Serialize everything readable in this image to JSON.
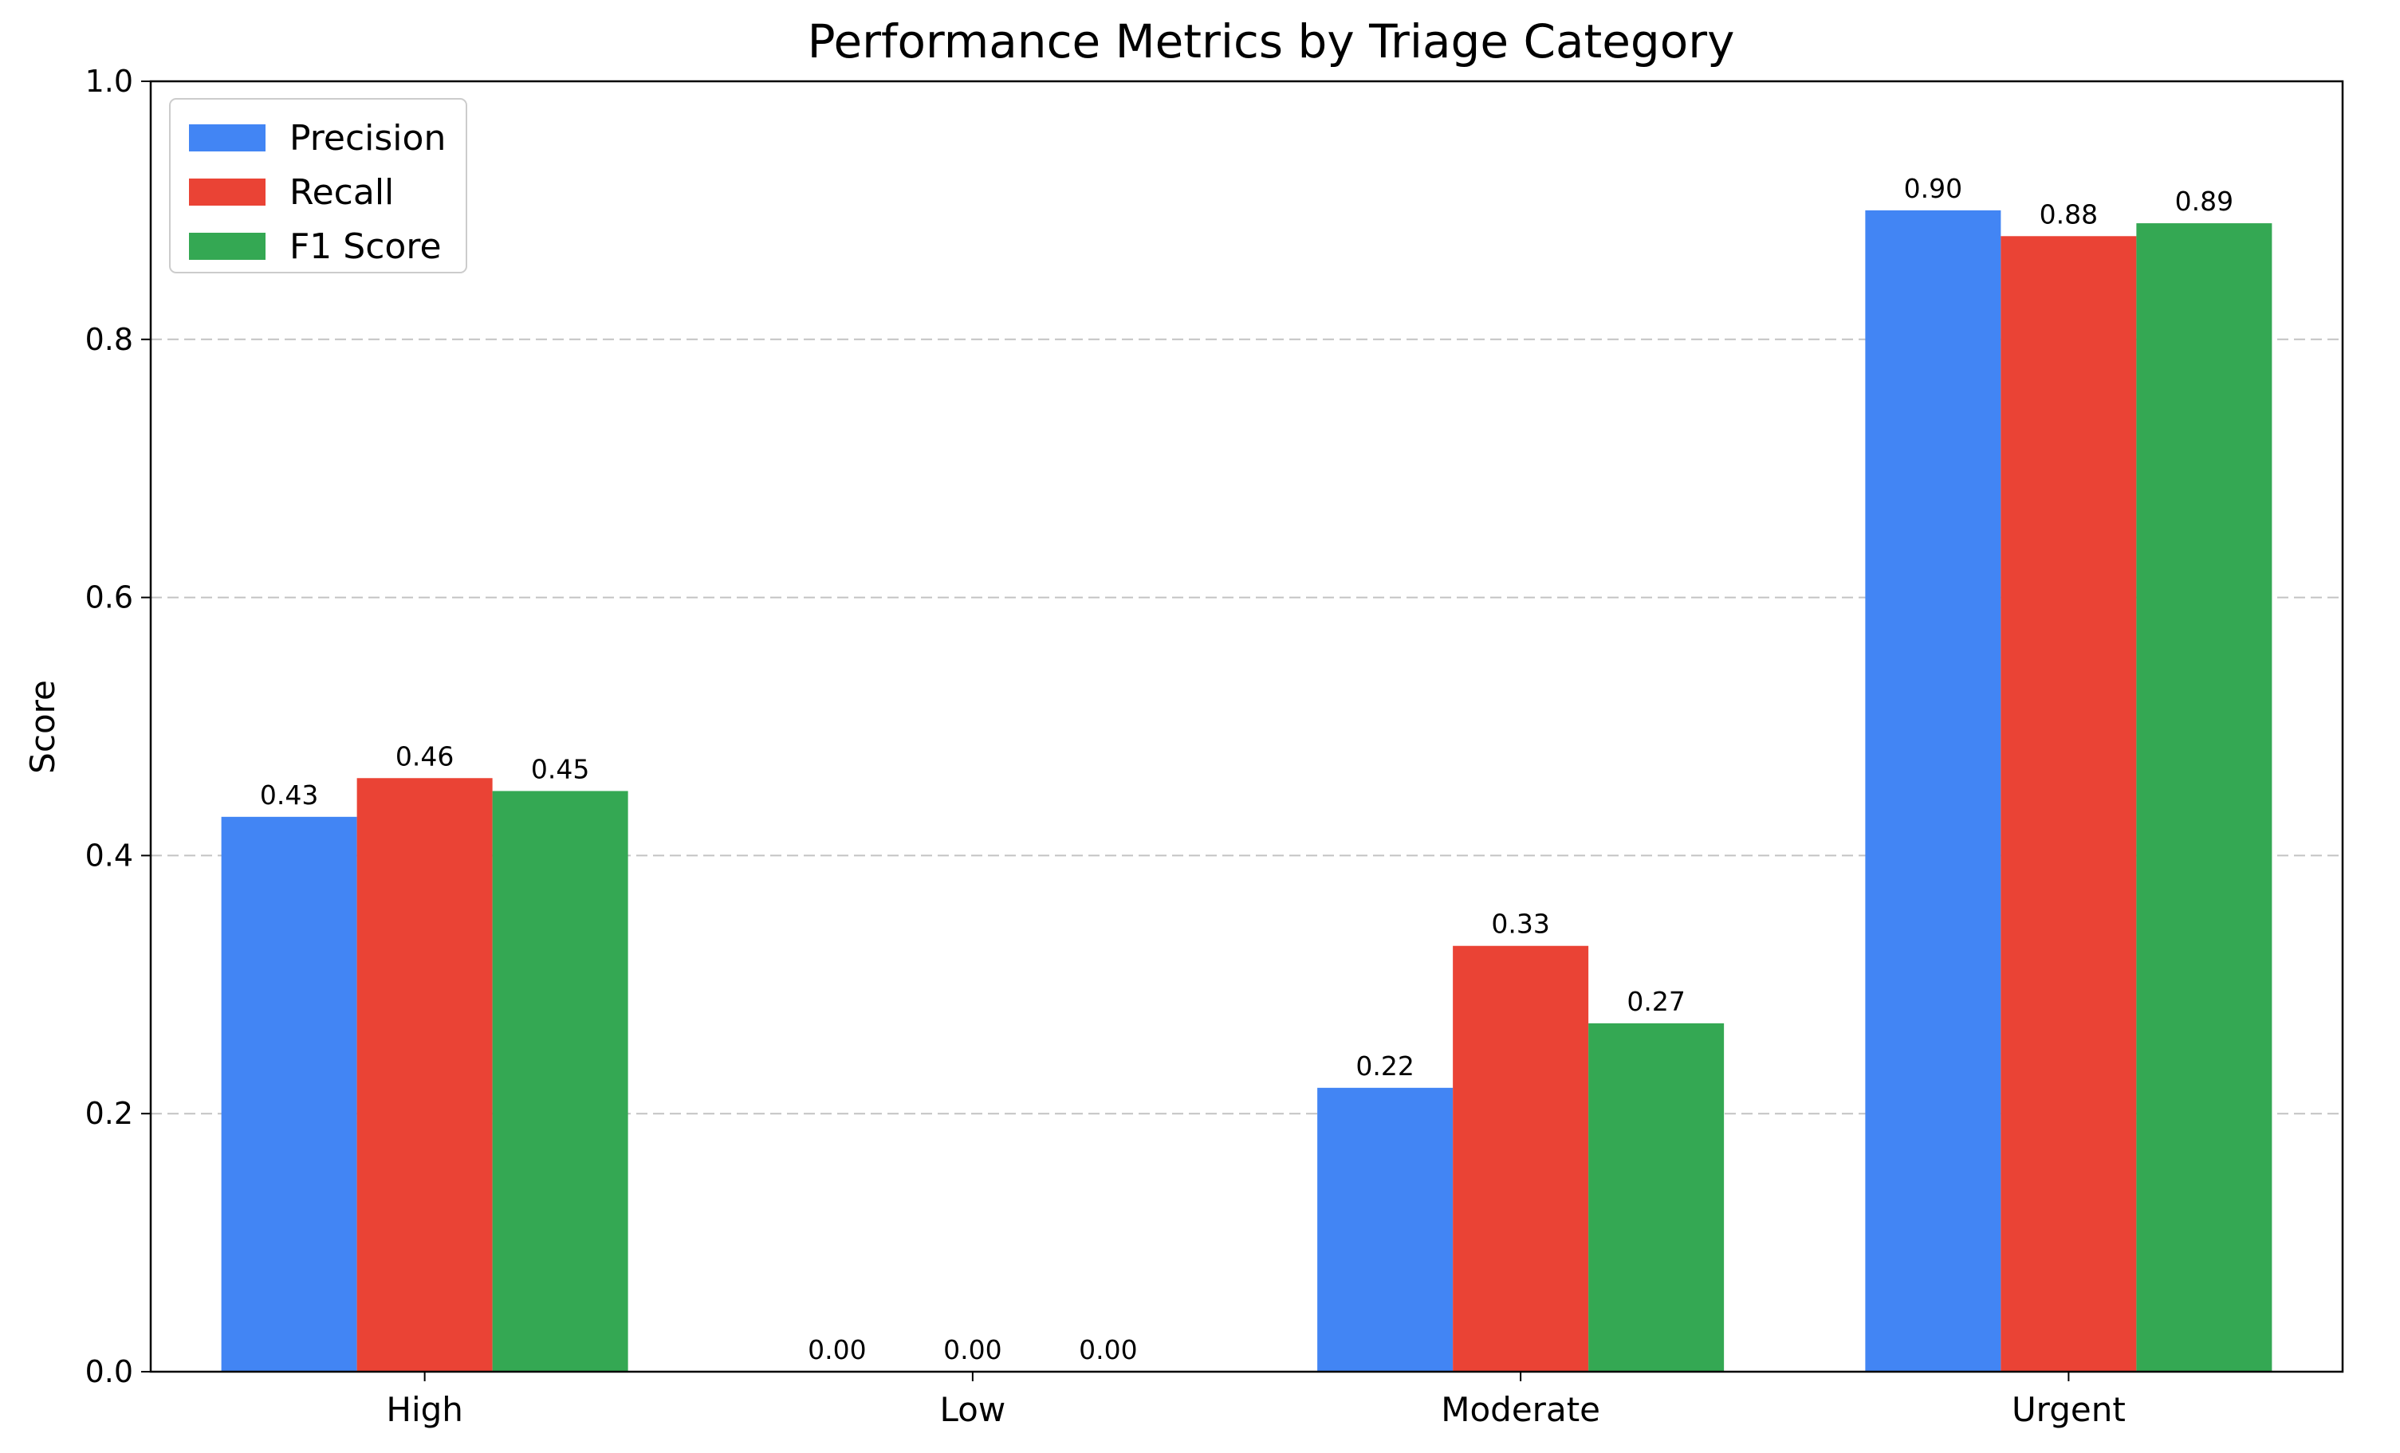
{
  "chart_data": {
    "type": "bar",
    "title": "Performance Metrics by Triage Category",
    "xlabel": "",
    "ylabel": "Score",
    "categories": [
      "High",
      "Low",
      "Moderate",
      "Urgent"
    ],
    "series": [
      {
        "name": "Precision",
        "color": "#4285F4",
        "values": [
          0.43,
          0.0,
          0.22,
          0.9
        ]
      },
      {
        "name": "Recall",
        "color": "#EA4335",
        "values": [
          0.46,
          0.0,
          0.33,
          0.88
        ]
      },
      {
        "name": "F1 Score",
        "color": "#34A853",
        "values": [
          0.45,
          0.0,
          0.27,
          0.89
        ]
      }
    ],
    "data_labels": [
      [
        "0.43",
        "0.00",
        "0.22",
        "0.90"
      ],
      [
        "0.46",
        "0.00",
        "0.33",
        "0.88"
      ],
      [
        "0.45",
        "0.00",
        "0.27",
        "0.89"
      ]
    ],
    "ylim": [
      0,
      1.0
    ],
    "yticks": [
      "0.0",
      "0.2",
      "0.4",
      "0.6",
      "0.8",
      "1.0"
    ],
    "grid": true,
    "grid_axis": "y",
    "legend_position": "top-left"
  }
}
